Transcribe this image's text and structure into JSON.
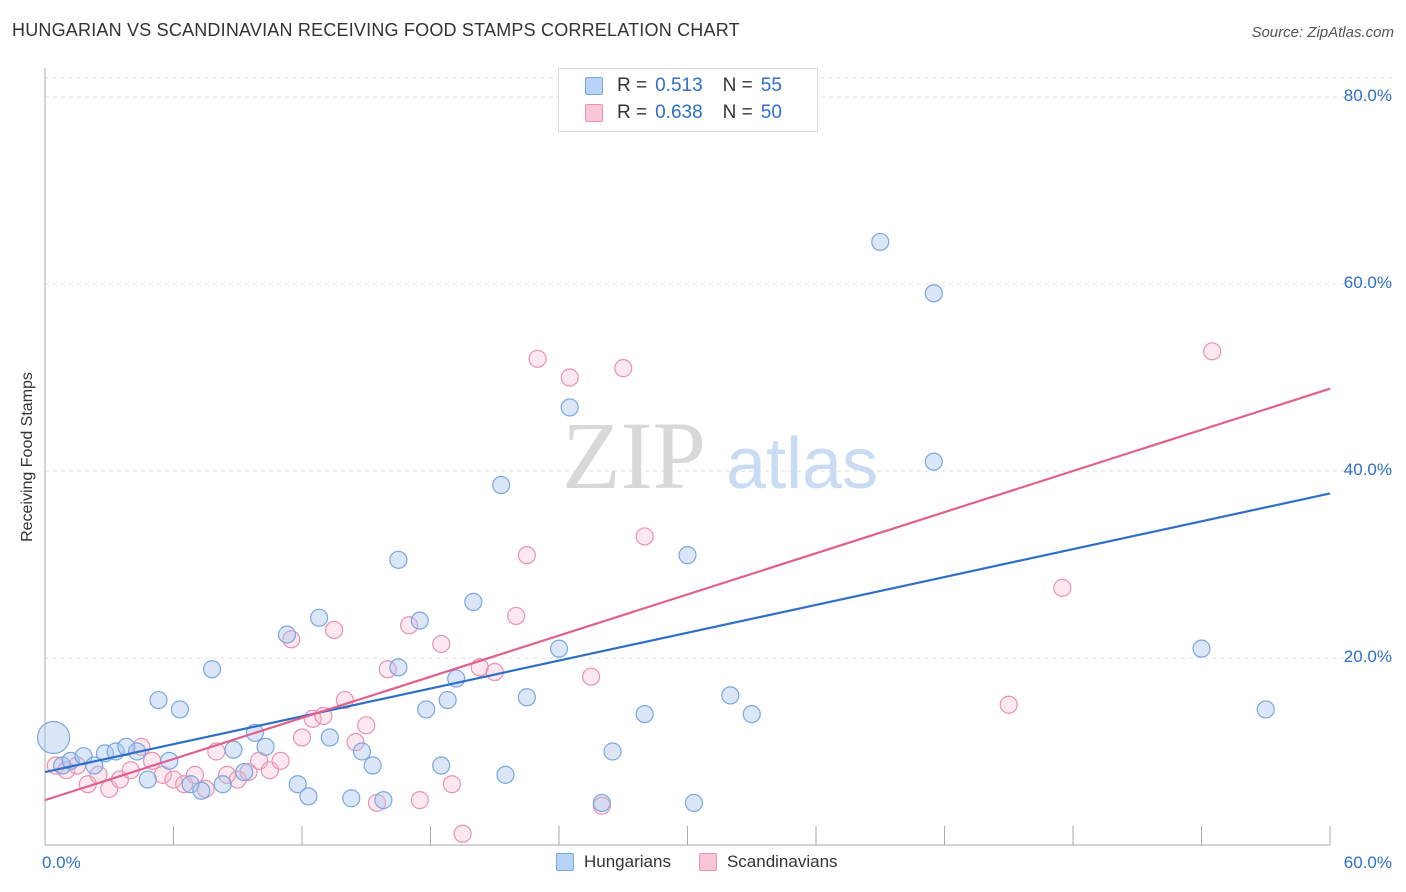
{
  "header": {
    "title": "HUNGARIAN VS SCANDINAVIAN RECEIVING FOOD STAMPS CORRELATION CHART",
    "source": "Source: ZipAtlas.com"
  },
  "watermark": {
    "zip": "ZIP",
    "atlas": "atlas"
  },
  "legend": {
    "r_label": "R =",
    "n_label": "N =",
    "rows": [
      {
        "name": "Hungarians",
        "r": "0.513",
        "n": "55",
        "fill": "#b8d3f5",
        "stroke": "#7aa7e0"
      },
      {
        "name": "Scandinavians",
        "r": "0.638",
        "n": "50",
        "fill": "#f8c6d5",
        "stroke": "#ea93b0"
      }
    ]
  },
  "colors": {
    "blue_point_fill": "rgba(164,196,240,0.40)",
    "blue_point_stroke": "#7aa7e0",
    "blue_line": "#2f6fc6",
    "pink_point_fill": "rgba(245,180,200,0.30)",
    "pink_point_stroke": "#ea93b0",
    "pink_line": "#e0608e",
    "axis_label": "#2f6fc6",
    "grid": "#dddddd"
  },
  "chart_data": {
    "type": "scatter",
    "title": "HUNGARIAN VS SCANDINAVIAN RECEIVING FOOD STAMPS CORRELATION CHART",
    "xlabel": "",
    "ylabel": "Receiving Food Stamps",
    "xlim": [
      0,
      60
    ],
    "ylim": [
      0,
      80
    ],
    "x_tick_labels": [
      "0.0%",
      "60.0%"
    ],
    "y_ticks": [
      20,
      40,
      60,
      80
    ],
    "y_tick_labels": [
      "20.0%",
      "40.0%",
      "60.0%",
      "80.0%"
    ],
    "grid": true,
    "legend_position": "top-center",
    "series": [
      {
        "name": "Hungarians",
        "r": 0.513,
        "n": 55,
        "trend": {
          "x0": 0,
          "y0": 7.8,
          "x1": 60,
          "y1": 37.6
        },
        "points": [
          [
            0.4,
            11.5
          ],
          [
            0.8,
            8.5
          ],
          [
            1.2,
            9.0
          ],
          [
            1.8,
            9.5
          ],
          [
            2.3,
            8.5
          ],
          [
            2.8,
            9.8
          ],
          [
            3.3,
            10.0
          ],
          [
            3.8,
            10.5
          ],
          [
            4.3,
            10.0
          ],
          [
            4.8,
            7.0
          ],
          [
            5.3,
            15.5
          ],
          [
            5.8,
            9.0
          ],
          [
            6.3,
            14.5
          ],
          [
            6.8,
            6.5
          ],
          [
            7.3,
            5.8
          ],
          [
            7.8,
            18.8
          ],
          [
            8.3,
            6.5
          ],
          [
            8.8,
            10.2
          ],
          [
            9.3,
            7.8
          ],
          [
            9.8,
            12.0
          ],
          [
            10.3,
            10.5
          ],
          [
            11.3,
            22.5
          ],
          [
            11.8,
            6.5
          ],
          [
            12.3,
            5.2
          ],
          [
            12.8,
            24.3
          ],
          [
            13.3,
            11.5
          ],
          [
            14.3,
            5.0
          ],
          [
            14.8,
            10.0
          ],
          [
            15.3,
            8.5
          ],
          [
            15.8,
            4.8
          ],
          [
            16.5,
            19.0
          ],
          [
            16.5,
            30.5
          ],
          [
            17.5,
            24.0
          ],
          [
            17.8,
            14.5
          ],
          [
            18.5,
            8.5
          ],
          [
            18.8,
            15.5
          ],
          [
            19.2,
            17.8
          ],
          [
            20.0,
            26.0
          ],
          [
            21.3,
            38.5
          ],
          [
            21.5,
            7.5
          ],
          [
            22.5,
            15.8
          ],
          [
            24.0,
            21.0
          ],
          [
            24.5,
            46.8
          ],
          [
            26.0,
            4.5
          ],
          [
            26.5,
            10.0
          ],
          [
            28.0,
            14.0
          ],
          [
            30.0,
            31.0
          ],
          [
            30.3,
            4.5
          ],
          [
            32.0,
            16.0
          ],
          [
            33.0,
            14.0
          ],
          [
            39.0,
            64.5
          ],
          [
            41.5,
            59.0
          ],
          [
            41.5,
            41.0
          ],
          [
            54.0,
            21.0
          ],
          [
            57.0,
            14.5
          ]
        ]
      },
      {
        "name": "Scandinavians",
        "r": 0.638,
        "n": 50,
        "trend": {
          "x0": 0,
          "y0": 4.8,
          "x1": 60,
          "y1": 48.8
        },
        "points": [
          [
            0.5,
            8.5
          ],
          [
            1.0,
            8.0
          ],
          [
            1.5,
            8.5
          ],
          [
            2.0,
            6.5
          ],
          [
            2.5,
            7.5
          ],
          [
            3.0,
            6.0
          ],
          [
            3.5,
            7.0
          ],
          [
            4.0,
            8.0
          ],
          [
            4.5,
            10.5
          ],
          [
            5.0,
            9.0
          ],
          [
            5.5,
            7.5
          ],
          [
            6.0,
            7.0
          ],
          [
            6.5,
            6.5
          ],
          [
            7.0,
            7.5
          ],
          [
            7.5,
            6.0
          ],
          [
            8.0,
            10.0
          ],
          [
            8.5,
            7.5
          ],
          [
            9.0,
            7.0
          ],
          [
            9.5,
            7.8
          ],
          [
            10.0,
            9.0
          ],
          [
            10.5,
            8.0
          ],
          [
            11.0,
            9.0
          ],
          [
            11.5,
            22.0
          ],
          [
            12.0,
            11.5
          ],
          [
            12.5,
            13.5
          ],
          [
            13.0,
            13.8
          ],
          [
            13.5,
            23.0
          ],
          [
            14.0,
            15.5
          ],
          [
            14.5,
            11.0
          ],
          [
            15.0,
            12.8
          ],
          [
            15.5,
            4.5
          ],
          [
            16.0,
            18.8
          ],
          [
            17.0,
            23.5
          ],
          [
            17.5,
            4.8
          ],
          [
            18.5,
            21.5
          ],
          [
            19.0,
            6.5
          ],
          [
            19.5,
            1.2
          ],
          [
            20.3,
            19.0
          ],
          [
            21.0,
            18.5
          ],
          [
            22.0,
            24.5
          ],
          [
            22.5,
            31.0
          ],
          [
            23.0,
            52.0
          ],
          [
            24.5,
            50.0
          ],
          [
            25.5,
            18.0
          ],
          [
            26.0,
            4.2
          ],
          [
            27.0,
            51.0
          ],
          [
            28.0,
            33.0
          ],
          [
            45.0,
            15.0
          ],
          [
            47.5,
            27.5
          ],
          [
            54.5,
            52.8
          ]
        ]
      }
    ]
  }
}
